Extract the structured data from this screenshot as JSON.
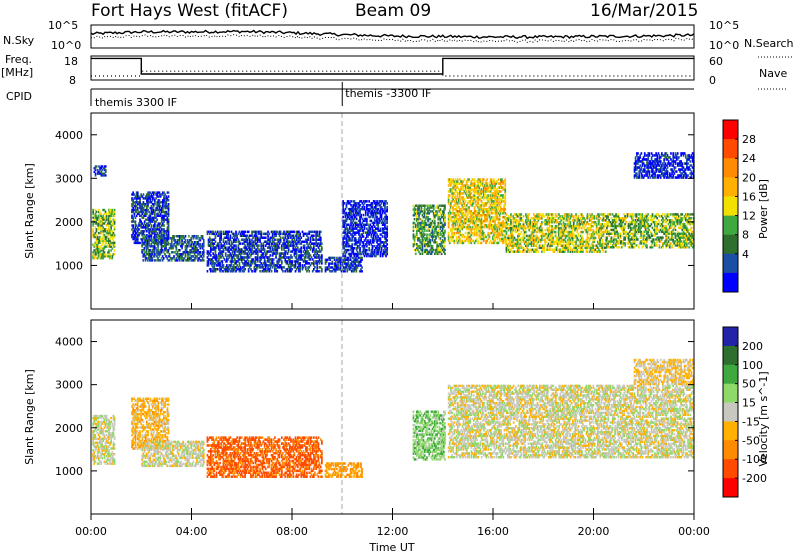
{
  "header": {
    "station": "Fort Hays West (fitACF)",
    "beam": "Beam 09",
    "date": "16/Mar/2015"
  },
  "summary_panels": {
    "nsky_label": "N.Sky",
    "nsearch_label": "N.Search",
    "freq_label_top": "Freq.",
    "freq_label_bottom": "[MHz]",
    "nave_label": "Nave",
    "cpid_label": "CPID",
    "nsky_ticks": [
      "10^5",
      "10^0"
    ],
    "nsearch_ticks": [
      "10^5",
      "10^0"
    ],
    "freq_ticks": [
      "18",
      "8"
    ],
    "nave_ticks": [
      "60",
      "0"
    ],
    "cpid_segments": [
      {
        "start_hour": 0,
        "end_hour": 10,
        "label": "themis 3300 IF"
      },
      {
        "start_hour": 10,
        "end_hour": 24,
        "label": "themis -3300 IF"
      }
    ],
    "freq_series": {
      "name": "Freq.",
      "points": [
        [
          0,
          17
        ],
        [
          2,
          17
        ],
        [
          2,
          10.5
        ],
        [
          14,
          10.5
        ],
        [
          14,
          17
        ],
        [
          24,
          17
        ]
      ]
    },
    "nave_series": {
      "name": "Nave",
      "points": [
        [
          0,
          10
        ],
        [
          2,
          10
        ],
        [
          2,
          22
        ],
        [
          14,
          22
        ],
        [
          14,
          10
        ],
        [
          24,
          10
        ]
      ]
    },
    "nsky_profile": [
      [
        0,
        0.62
      ],
      [
        2,
        0.7
      ],
      [
        4,
        0.7
      ],
      [
        6,
        0.72
      ],
      [
        8,
        0.66
      ],
      [
        10,
        0.58
      ],
      [
        12,
        0.52
      ],
      [
        14,
        0.5
      ],
      [
        16,
        0.48
      ],
      [
        18,
        0.48
      ],
      [
        20,
        0.5
      ],
      [
        22,
        0.52
      ],
      [
        24,
        0.56
      ]
    ]
  },
  "chart_data": [
    {
      "type": "heatmap",
      "panel": "power",
      "xlabel": "Time UT",
      "ylabel": "Slant Range [km]",
      "x_ticks": [
        "00:00",
        "04:00",
        "08:00",
        "12:00",
        "16:00",
        "20:00",
        "00:00"
      ],
      "x_tick_hours": [
        0,
        4,
        8,
        12,
        16,
        20,
        24
      ],
      "xlim": [
        0,
        24
      ],
      "ylim": [
        0,
        4500
      ],
      "y_ticks": [
        1000,
        2000,
        3000,
        4000
      ],
      "colorbar": {
        "label": "Power [dB]",
        "ticks": [
          "28",
          "24",
          "20",
          "16",
          "12",
          "8",
          "4"
        ],
        "colors": [
          "#ff0000",
          "#ff4a00",
          "#ff8c00",
          "#ffb000",
          "#f2e000",
          "#3fa83f",
          "#2e6f2e",
          "#1a4fa3",
          "#0000ff"
        ]
      },
      "dashed_marker_hour": 10,
      "echo_regions": [
        {
          "t0": 0.05,
          "t1": 0.95,
          "r0": 1150,
          "r1": 2300,
          "value": 14
        },
        {
          "t0": 0.1,
          "t1": 0.6,
          "r0": 3050,
          "r1": 3300,
          "value": 6
        },
        {
          "t0": 1.6,
          "t1": 3.1,
          "r0": 1500,
          "r1": 2700,
          "value": 6
        },
        {
          "t0": 2.0,
          "t1": 4.5,
          "r0": 1100,
          "r1": 1700,
          "value": 8
        },
        {
          "t0": 4.6,
          "t1": 9.2,
          "r0": 850,
          "r1": 1800,
          "value": 6
        },
        {
          "t0": 9.3,
          "t1": 10.8,
          "r0": 850,
          "r1": 1200,
          "value": 6
        },
        {
          "t0": 10.0,
          "t1": 11.8,
          "r0": 1200,
          "r1": 2500,
          "value": 4
        },
        {
          "t0": 12.8,
          "t1": 14.1,
          "r0": 1250,
          "r1": 2400,
          "value": 12
        },
        {
          "t0": 14.2,
          "t1": 16.5,
          "r0": 1500,
          "r1": 3000,
          "value": 18
        },
        {
          "t0": 16.5,
          "t1": 20.5,
          "r0": 1300,
          "r1": 2200,
          "value": 16
        },
        {
          "t0": 20.5,
          "t1": 24.0,
          "r0": 1400,
          "r1": 2200,
          "value": 14
        },
        {
          "t0": 21.6,
          "t1": 24.0,
          "r0": 3000,
          "r1": 3600,
          "value": 4
        }
      ]
    },
    {
      "type": "heatmap",
      "panel": "velocity",
      "xlabel": "Time UT",
      "ylabel": "Slant Range [km]",
      "x_ticks": [
        "00:00",
        "04:00",
        "08:00",
        "12:00",
        "16:00",
        "20:00",
        "00:00"
      ],
      "x_tick_hours": [
        0,
        4,
        8,
        12,
        16,
        20,
        24
      ],
      "xlim": [
        0,
        24
      ],
      "ylim": [
        0,
        4500
      ],
      "y_ticks": [
        1000,
        2000,
        3000,
        4000
      ],
      "colorbar": {
        "label": "Velocity [m s^-1]",
        "ticks": [
          "200",
          "100",
          "50",
          "15",
          "-15",
          "-50",
          "-100",
          "-200"
        ],
        "colors": [
          "#2222aa",
          "#2e6f2e",
          "#3fa83f",
          "#8fd86a",
          "#c8c8c0",
          "#ffb000",
          "#ff8c00",
          "#ff4a00",
          "#ff0000"
        ]
      },
      "dashed_marker_hour": 10,
      "echo_regions": [
        {
          "t0": 0.05,
          "t1": 0.95,
          "r0": 1150,
          "r1": 2300,
          "value": 0
        },
        {
          "t0": 1.6,
          "t1": 3.1,
          "r0": 1500,
          "r1": 2700,
          "value": -30
        },
        {
          "t0": 2.0,
          "t1": 4.5,
          "r0": 1100,
          "r1": 1700,
          "value": 0
        },
        {
          "t0": 4.6,
          "t1": 9.2,
          "r0": 850,
          "r1": 1800,
          "value": -110
        },
        {
          "t0": 9.3,
          "t1": 10.8,
          "r0": 850,
          "r1": 1200,
          "value": -60
        },
        {
          "t0": 12.8,
          "t1": 14.1,
          "r0": 1250,
          "r1": 2400,
          "value": 40
        },
        {
          "t0": 14.2,
          "t1": 24.0,
          "r0": 1300,
          "r1": 3000,
          "value": 0
        },
        {
          "t0": 21.6,
          "t1": 24.0,
          "r0": 3000,
          "r1": 3600,
          "value": -20
        }
      ]
    }
  ]
}
